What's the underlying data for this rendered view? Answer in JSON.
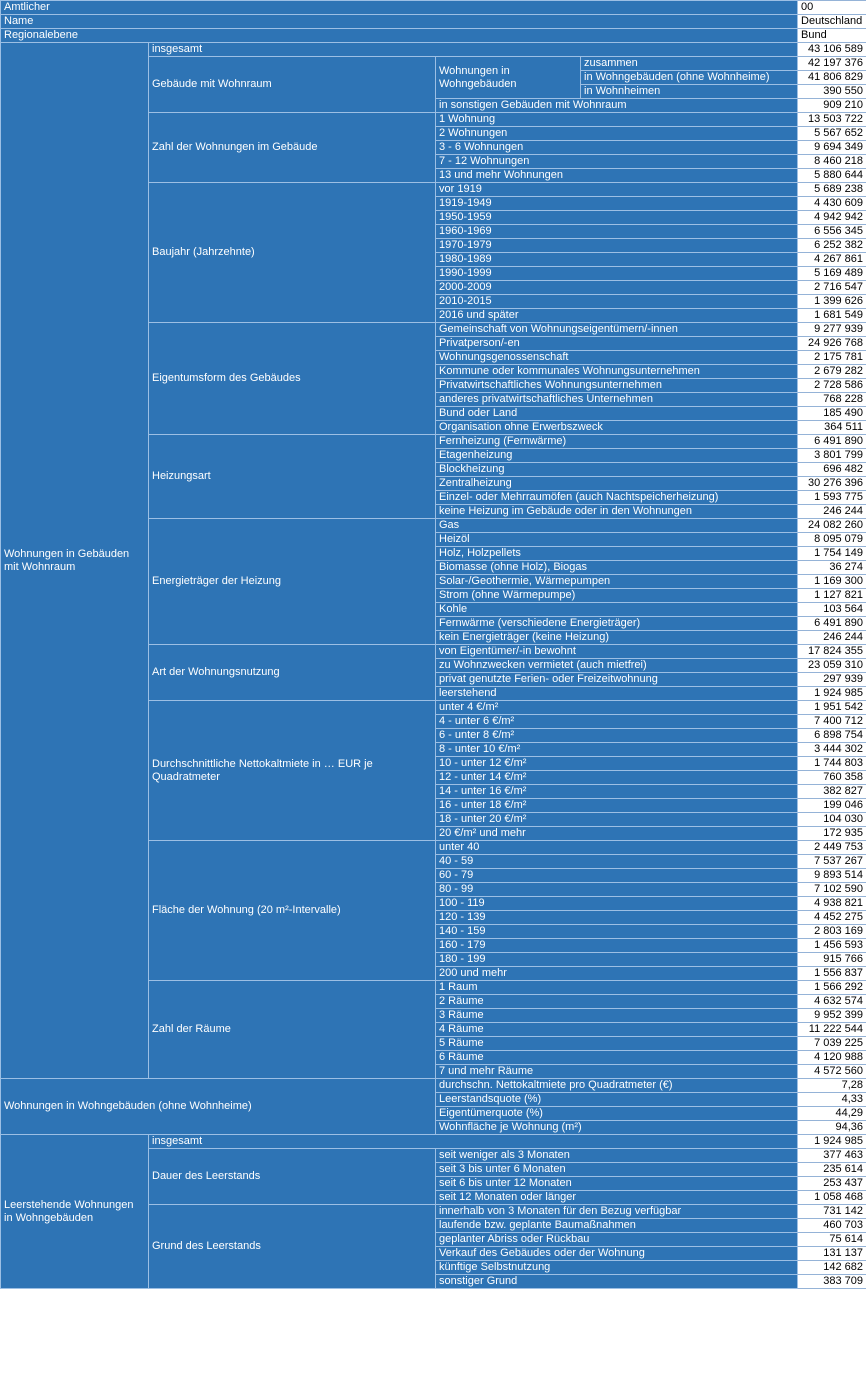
{
  "colors": {
    "header_blue": "#2e74b5",
    "grid_light": "#9cbfe4",
    "value_border": "#95b3d7"
  },
  "meta": [
    {
      "label": "Amtlicher",
      "value": "00"
    },
    {
      "label": "Name",
      "value": "Deutschland"
    },
    {
      "label": "Regionalebene",
      "value": "Bund"
    }
  ],
  "table": {
    "sections": [
      {
        "title": "Wohnungen in Gebäuden mit Wohnraum",
        "wide_title": false,
        "groups": [
          {
            "kind": "single",
            "label": "insgesamt",
            "value": "43 106 589"
          },
          {
            "kind": "group",
            "title": "Gebäude mit Wohnraum",
            "items": [
              {
                "kind": "subgroup",
                "title": "Wohnungen in Wohngebäuden",
                "rows": [
                  {
                    "label": "zusammen",
                    "value": "42 197 376"
                  },
                  {
                    "label": "in Wohngebäuden (ohne Wohnheime)",
                    "value": "41 806 829"
                  },
                  {
                    "label": "in Wohnheimen",
                    "value": "390 550"
                  }
                ]
              },
              {
                "kind": "row",
                "label": "in sonstigen Gebäuden mit Wohnraum",
                "value": "909 210"
              }
            ]
          },
          {
            "kind": "group",
            "title": "Zahl der Wohnungen im Gebäude",
            "items": [
              {
                "kind": "row",
                "label": "1 Wohnung",
                "value": "13 503 722"
              },
              {
                "kind": "row",
                "label": "2 Wohnungen",
                "value": "5 567 652"
              },
              {
                "kind": "row",
                "label": "3 - 6 Wohnungen",
                "value": "9 694 349"
              },
              {
                "kind": "row",
                "label": "7 - 12 Wohnungen",
                "value": "8 460 218"
              },
              {
                "kind": "row",
                "label": "13 und mehr Wohnungen",
                "value": "5 880 644"
              }
            ]
          },
          {
            "kind": "group",
            "title": "Baujahr (Jahrzehnte)",
            "items": [
              {
                "kind": "row",
                "label": "vor 1919",
                "value": "5 689 238"
              },
              {
                "kind": "row",
                "label": "1919-1949",
                "value": "4 430 609"
              },
              {
                "kind": "row",
                "label": "1950-1959",
                "value": "4 942 942"
              },
              {
                "kind": "row",
                "label": "1960-1969",
                "value": "6 556 345"
              },
              {
                "kind": "row",
                "label": "1970-1979",
                "value": "6 252 382"
              },
              {
                "kind": "row",
                "label": "1980-1989",
                "value": "4 267 861"
              },
              {
                "kind": "row",
                "label": "1990-1999",
                "value": "5 169 489"
              },
              {
                "kind": "row",
                "label": "2000-2009",
                "value": "2 716 547"
              },
              {
                "kind": "row",
                "label": "2010-2015",
                "value": "1 399 626"
              },
              {
                "kind": "row",
                "label": "2016 und später",
                "value": "1 681 549"
              }
            ]
          },
          {
            "kind": "group",
            "title": "Eigentumsform des Gebäudes",
            "items": [
              {
                "kind": "row",
                "label": "Gemeinschaft von Wohnungseigentümern/-innen",
                "value": "9 277 939"
              },
              {
                "kind": "row",
                "label": "Privatperson/-en",
                "value": "24 926 768"
              },
              {
                "kind": "row",
                "label": "Wohnungsgenossenschaft",
                "value": "2 175 781"
              },
              {
                "kind": "row",
                "label": "Kommune oder kommunales Wohnungsunternehmen",
                "value": "2 679 282"
              },
              {
                "kind": "row",
                "label": "Privatwirtschaftliches Wohnungsunternehmen",
                "value": "2 728 586"
              },
              {
                "kind": "row",
                "label": "anderes privatwirtschaftliches Unternehmen",
                "value": "768 228"
              },
              {
                "kind": "row",
                "label": "Bund oder Land",
                "value": "185 490"
              },
              {
                "kind": "row",
                "label": "Organisation ohne Erwerbszweck",
                "value": "364 511"
              }
            ]
          },
          {
            "kind": "group",
            "title": "Heizungsart",
            "items": [
              {
                "kind": "row",
                "label": "Fernheizung (Fernwärme)",
                "value": "6 491 890"
              },
              {
                "kind": "row",
                "label": "Etagenheizung",
                "value": "3 801 799"
              },
              {
                "kind": "row",
                "label": "Blockheizung",
                "value": "696 482"
              },
              {
                "kind": "row",
                "label": "Zentralheizung",
                "value": "30 276 396"
              },
              {
                "kind": "row",
                "label": "Einzel- oder Mehrraumöfen (auch Nachtspeicherheizung)",
                "value": "1 593 775"
              },
              {
                "kind": "row",
                "label": "keine Heizung im Gebäude oder in den Wohnungen",
                "value": "246 244"
              }
            ]
          },
          {
            "kind": "group",
            "title": "Energieträger der Heizung",
            "items": [
              {
                "kind": "row",
                "label": "Gas",
                "value": "24 082 260"
              },
              {
                "kind": "row",
                "label": "Heizöl",
                "value": "8 095 079"
              },
              {
                "kind": "row",
                "label": "Holz, Holzpellets",
                "value": "1 754 149"
              },
              {
                "kind": "row",
                "label": "Biomasse (ohne Holz), Biogas",
                "value": "36 274"
              },
              {
                "kind": "row",
                "label": "Solar-/Geothermie, Wärmepumpen",
                "value": "1 169 300"
              },
              {
                "kind": "row",
                "label": "Strom (ohne Wärmepumpe)",
                "value": "1 127 821"
              },
              {
                "kind": "row",
                "label": "Kohle",
                "value": "103 564"
              },
              {
                "kind": "row",
                "label": "Fernwärme (verschiedene Energieträger)",
                "value": "6 491 890"
              },
              {
                "kind": "row",
                "label": "kein Energieträger (keine Heizung)",
                "value": "246 244"
              }
            ]
          },
          {
            "kind": "group",
            "title": "Art der Wohnungsnutzung",
            "items": [
              {
                "kind": "row",
                "label": "von Eigentümer/-in bewohnt",
                "value": "17 824 355"
              },
              {
                "kind": "row",
                "label": "zu Wohnzwecken vermietet (auch mietfrei)",
                "value": "23 059 310"
              },
              {
                "kind": "row",
                "label": "privat genutzte Ferien- oder Freizeitwohnung",
                "value": "297 939"
              },
              {
                "kind": "row",
                "label": "leerstehend",
                "value": "1 924 985"
              }
            ]
          },
          {
            "kind": "group",
            "title": "Durchschnittliche Nettokaltmiete in … EUR je Quadratmeter",
            "items": [
              {
                "kind": "row",
                "label": "unter 4 €/m²",
                "value": "1 951 542"
              },
              {
                "kind": "row",
                "label": "4 - unter 6 €/m²",
                "value": "7 400 712"
              },
              {
                "kind": "row",
                "label": "6 - unter 8 €/m²",
                "value": "6 898 754"
              },
              {
                "kind": "row",
                "label": "8 - unter 10 €/m²",
                "value": "3 444 302"
              },
              {
                "kind": "row",
                "label": "10 - unter 12 €/m²",
                "value": "1 744 803"
              },
              {
                "kind": "row",
                "label": "12 - unter 14 €/m²",
                "value": "760 358"
              },
              {
                "kind": "row",
                "label": "14 - unter 16 €/m²",
                "value": "382 827"
              },
              {
                "kind": "row",
                "label": "16 - unter 18 €/m²",
                "value": "199 046"
              },
              {
                "kind": "row",
                "label": "18 - unter 20 €/m²",
                "value": "104 030"
              },
              {
                "kind": "row",
                "label": "20 €/m² und mehr",
                "value": "172 935"
              }
            ]
          },
          {
            "kind": "group",
            "title": "Fläche der Wohnung (20 m²-Intervalle)",
            "items": [
              {
                "kind": "row",
                "label": "unter 40",
                "value": "2 449 753"
              },
              {
                "kind": "row",
                "label": "40 - 59",
                "value": "7 537 267"
              },
              {
                "kind": "row",
                "label": "60 - 79",
                "value": "9 893 514"
              },
              {
                "kind": "row",
                "label": "80 - 99",
                "value": "7 102 590"
              },
              {
                "kind": "row",
                "label": "100 - 119",
                "value": "4 938 821"
              },
              {
                "kind": "row",
                "label": "120 - 139",
                "value": "4 452 275"
              },
              {
                "kind": "row",
                "label": "140 - 159",
                "value": "2 803 169"
              },
              {
                "kind": "row",
                "label": "160 - 179",
                "value": "1 456 593"
              },
              {
                "kind": "row",
                "label": "180 - 199",
                "value": "915 766"
              },
              {
                "kind": "row",
                "label": "200 und mehr",
                "value": "1 556 837"
              }
            ]
          },
          {
            "kind": "group",
            "title": "Zahl der Räume",
            "items": [
              {
                "kind": "row",
                "label": "1 Raum",
                "value": "1 566 292"
              },
              {
                "kind": "row",
                "label": "2 Räume",
                "value": "4 632 574"
              },
              {
                "kind": "row",
                "label": "3 Räume",
                "value": "9 952 399"
              },
              {
                "kind": "row",
                "label": "4 Räume",
                "value": "11 222 544"
              },
              {
                "kind": "row",
                "label": "5 Räume",
                "value": "7 039 225"
              },
              {
                "kind": "row",
                "label": "6 Räume",
                "value": "4 120 988"
              },
              {
                "kind": "row",
                "label": "7 und mehr Räume",
                "value": "4 572 560"
              }
            ]
          }
        ]
      },
      {
        "title": "Wohnungen in Wohngebäuden (ohne Wohnheime)",
        "wide_title": true,
        "groups": [
          {
            "kind": "row",
            "label": "durchschn. Nettokaltmiete pro Quadratmeter (€)",
            "value": "7,28"
          },
          {
            "kind": "row",
            "label": "Leerstandsquote (%)",
            "value": "4,33"
          },
          {
            "kind": "row",
            "label": "Eigentümerquote (%)",
            "value": "44,29"
          },
          {
            "kind": "row",
            "label": "Wohnfläche je Wohnung (m²)",
            "value": "94,36"
          }
        ]
      },
      {
        "title": "Leerstehende Wohnungen in Wohngebäuden",
        "wide_title": false,
        "groups": [
          {
            "kind": "single",
            "label": "insgesamt",
            "value": "1 924 985"
          },
          {
            "kind": "group",
            "title": "Dauer des Leerstands",
            "items": [
              {
                "kind": "row",
                "label": "seit weniger als 3 Monaten",
                "value": "377 463"
              },
              {
                "kind": "row",
                "label": "seit 3 bis unter 6 Monaten",
                "value": "235 614"
              },
              {
                "kind": "row",
                "label": "seit 6 bis unter 12 Monaten",
                "value": "253 437"
              },
              {
                "kind": "row",
                "label": "seit 12 Monaten oder länger",
                "value": "1 058 468"
              }
            ]
          },
          {
            "kind": "group",
            "title": "Grund des Leerstands",
            "items": [
              {
                "kind": "row",
                "label": "innerhalb von 3 Monaten für den Bezug verfügbar",
                "value": "731 142"
              },
              {
                "kind": "row",
                "label": "laufende bzw. geplante Baumaßnahmen",
                "value": "460 703"
              },
              {
                "kind": "row",
                "label": "geplanter Abriss oder Rückbau",
                "value": "75 614"
              },
              {
                "kind": "row",
                "label": "Verkauf des Gebäudes oder der Wohnung",
                "value": "131 137"
              },
              {
                "kind": "row",
                "label": "künftige Selbstnutzung",
                "value": "142 682"
              },
              {
                "kind": "row",
                "label": "sonstiger Grund",
                "value": "383 709"
              }
            ]
          }
        ]
      }
    ]
  }
}
